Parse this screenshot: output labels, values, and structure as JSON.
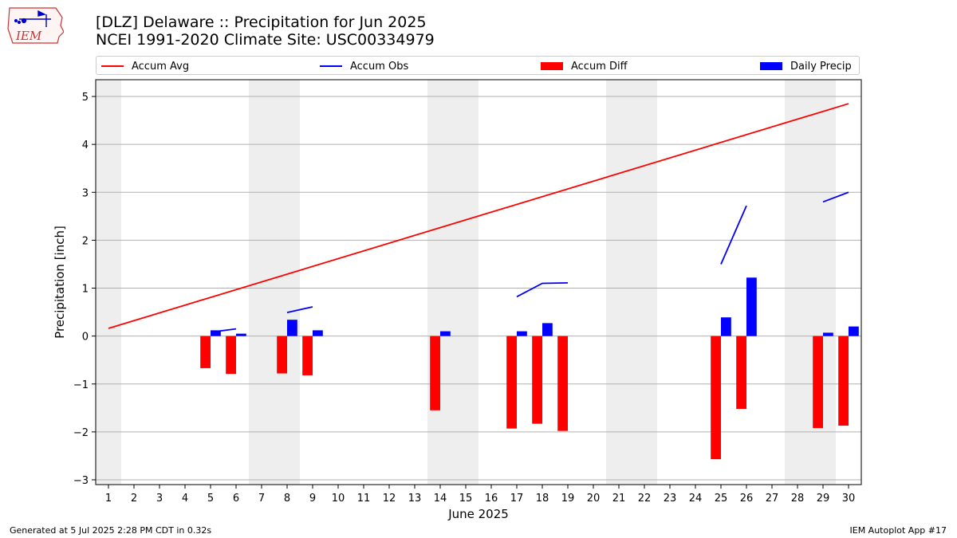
{
  "header": {
    "title_line1": "[DLZ] Delaware :: Precipitation for Jun 2025",
    "title_line2": "NCEI 1991-2020 Climate Site: USC00334979"
  },
  "logo": {
    "text": "IEM"
  },
  "legend": {
    "items": [
      {
        "label": "Accum Avg",
        "kind": "line",
        "color": "#ff0000"
      },
      {
        "label": "Accum Obs",
        "kind": "line",
        "color": "#0000ff"
      },
      {
        "label": "Accum Diff",
        "kind": "box",
        "color": "#ff0000"
      },
      {
        "label": "Daily Precip",
        "kind": "box",
        "color": "#0000ff"
      }
    ]
  },
  "footer": {
    "left": "Generated at 5 Jul 2025 2:28 PM CDT in 0.32s",
    "right": "IEM Autoplot App #17"
  },
  "chart_data": {
    "type": "bar",
    "title": "[DLZ] Delaware :: Precipitation for Jun 2025",
    "subtitle": "NCEI 1991-2020 Climate Site: USC00334979",
    "xlabel": "June 2025",
    "ylabel": "Precipitation [inch]",
    "xlim": [
      0.5,
      30.5
    ],
    "ylim": [
      -3.1,
      5.35
    ],
    "yticks": [
      -3,
      -2,
      -1,
      0,
      1,
      2,
      3,
      4,
      5
    ],
    "ytick_labels": [
      "−3",
      "−2",
      "−1",
      "0",
      "1",
      "2",
      "3",
      "4",
      "5"
    ],
    "days": [
      1,
      2,
      3,
      4,
      5,
      6,
      7,
      8,
      9,
      10,
      11,
      12,
      13,
      14,
      15,
      16,
      17,
      18,
      19,
      20,
      21,
      22,
      23,
      24,
      25,
      26,
      27,
      28,
      29,
      30
    ],
    "weekend_shading": [
      [
        0.5,
        1.5
      ],
      [
        6.5,
        8.5
      ],
      [
        13.5,
        15.5
      ],
      [
        20.5,
        22.5
      ],
      [
        27.5,
        29.5
      ]
    ],
    "grid": "horizontal",
    "legend_position": "top",
    "accum_avg": {
      "start": [
        1,
        0.16
      ],
      "end": [
        30,
        4.85
      ]
    },
    "accum_obs_segments": [
      [
        [
          5,
          0.08
        ],
        [
          6,
          0.15
        ]
      ],
      [
        [
          8,
          0.49
        ],
        [
          9,
          0.61
        ]
      ],
      [
        [
          17,
          0.82
        ],
        [
          18,
          1.1
        ],
        [
          19,
          1.11
        ]
      ],
      [
        [
          25,
          1.5
        ],
        [
          26,
          2.72
        ]
      ],
      [
        [
          29,
          2.8
        ],
        [
          30,
          3.0
        ]
      ]
    ],
    "accum_diff": [
      {
        "day": 5,
        "value": -0.67
      },
      {
        "day": 6,
        "value": -0.79
      },
      {
        "day": 8,
        "value": -0.78
      },
      {
        "day": 9,
        "value": -0.82
      },
      {
        "day": 14,
        "value": -1.55
      },
      {
        "day": 17,
        "value": -1.93
      },
      {
        "day": 18,
        "value": -1.83
      },
      {
        "day": 19,
        "value": -1.98
      },
      {
        "day": 25,
        "value": -2.57
      },
      {
        "day": 26,
        "value": -1.52
      },
      {
        "day": 29,
        "value": -1.92
      },
      {
        "day": 30,
        "value": -1.87
      }
    ],
    "daily_precip": [
      {
        "day": 5,
        "value": 0.12
      },
      {
        "day": 6,
        "value": 0.05
      },
      {
        "day": 8,
        "value": 0.34
      },
      {
        "day": 9,
        "value": 0.12
      },
      {
        "day": 14,
        "value": 0.1
      },
      {
        "day": 17,
        "value": 0.1
      },
      {
        "day": 18,
        "value": 0.27
      },
      {
        "day": 25,
        "value": 0.39
      },
      {
        "day": 26,
        "value": 1.22
      },
      {
        "day": 29,
        "value": 0.07
      },
      {
        "day": 30,
        "value": 0.2
      }
    ]
  }
}
